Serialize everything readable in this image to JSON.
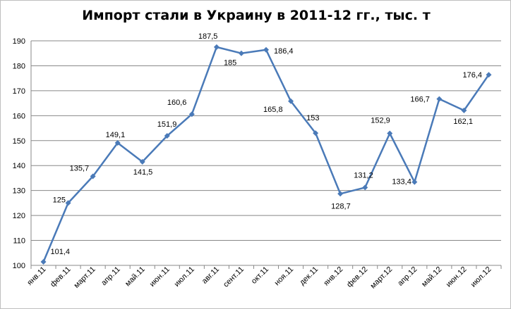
{
  "chart_data": {
    "type": "line",
    "title": "Импорт стали в Украину в 2011-12 гг., тыс. т",
    "xlabel": "",
    "ylabel": "",
    "categories": [
      "янв.11",
      "фев.11",
      "март.11",
      "апр.11",
      "май.11",
      "июн.11",
      "июл.11",
      "авг.11",
      "сент.11",
      "окт.11",
      "ноя.11",
      "дек.11",
      "янв.12",
      "фев.12",
      "март.12",
      "апр.12",
      "май.12",
      "июн.12",
      "июл.12"
    ],
    "series": [
      {
        "values": [
          101.4,
          125,
          135.7,
          149.1,
          141.5,
          151.9,
          160.6,
          187.5,
          185,
          186.4,
          165.8,
          153,
          128.7,
          131.2,
          152.9,
          133.4,
          166.7,
          162.1,
          176.4
        ],
        "labels": [
          "101,4",
          "125",
          "135,7",
          "149,1",
          "141,5",
          "151,9",
          "160,6",
          "187,5",
          "185",
          "186,4",
          "165,8",
          "153",
          "128,7",
          "131,2",
          "152,9",
          "133,4",
          "166,7",
          "162,1",
          "176,4"
        ]
      }
    ],
    "ylim": [
      100,
      190
    ],
    "yticks": [
      100,
      110,
      120,
      130,
      140,
      150,
      160,
      170,
      180,
      190
    ],
    "grid": true,
    "legend": "none",
    "colors": {
      "line": "#4a7ab8",
      "grid": "#888888",
      "axis": "#888888"
    }
  }
}
